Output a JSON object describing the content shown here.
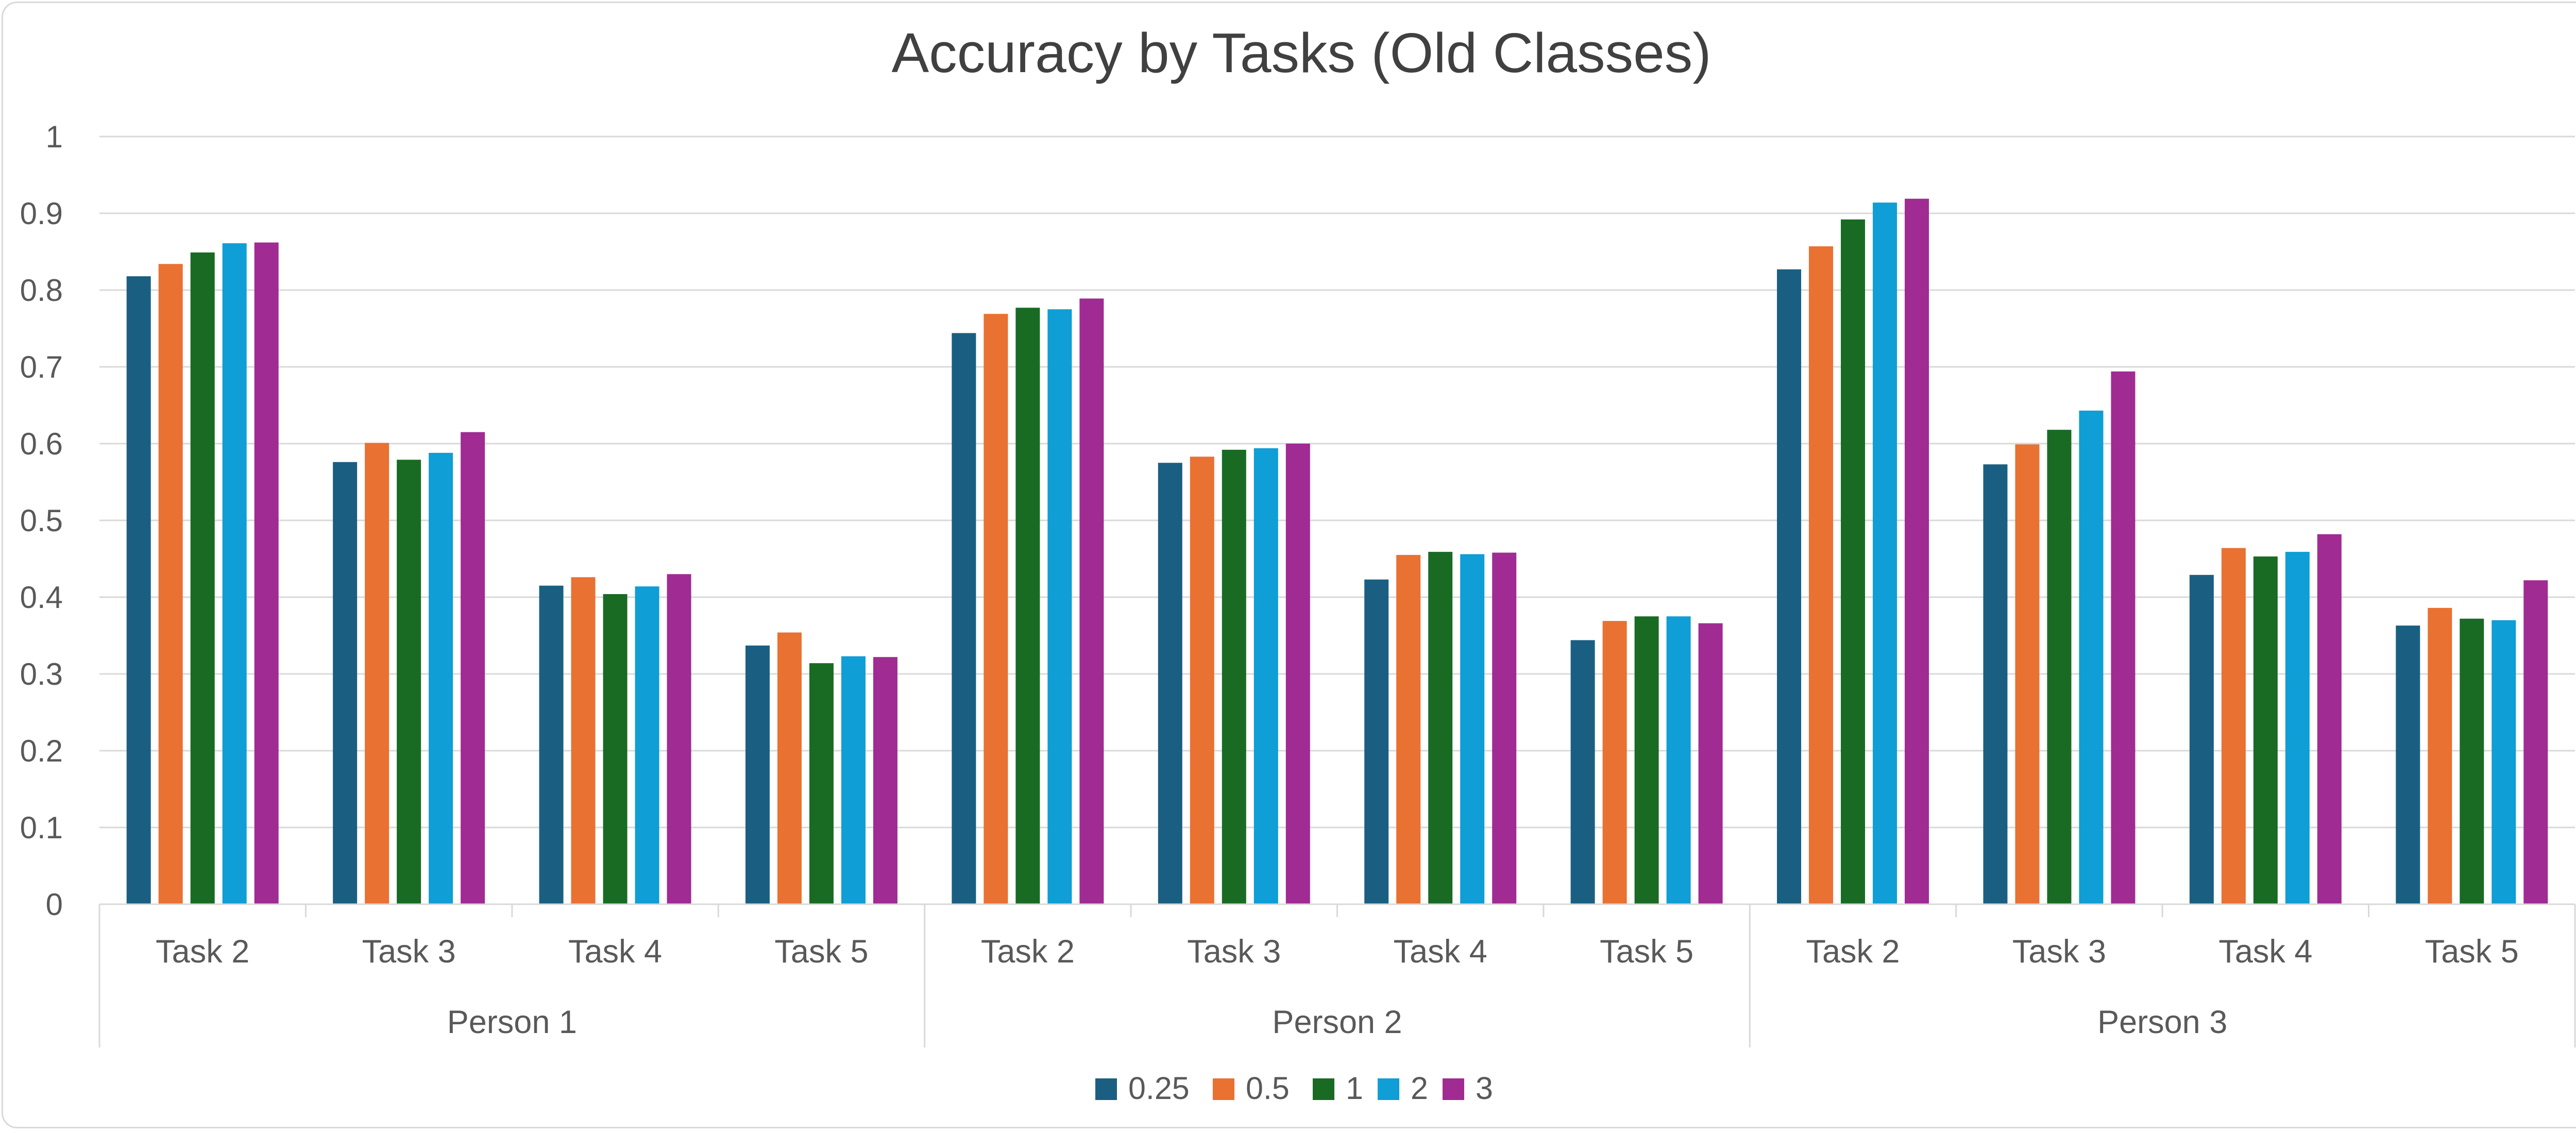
{
  "chart_data": {
    "type": "bar",
    "title": "Accuracy by Tasks (Old Classes)",
    "xlabel": "",
    "ylabel": "",
    "ylim": [
      0,
      1
    ],
    "yticks": [
      "0",
      "0.1",
      "0.2",
      "0.3",
      "0.4",
      "0.5",
      "0.6",
      "0.7",
      "0.8",
      "0.9",
      "1"
    ],
    "groups": [
      "Person 1",
      "Person 2",
      "Person 3"
    ],
    "categories": [
      "Task 2",
      "Task 3",
      "Task 4",
      "Task 5",
      "Task 2",
      "Task 3",
      "Task 4",
      "Task 5",
      "Task 2",
      "Task 3",
      "Task 4",
      "Task 5"
    ],
    "grid": true,
    "legend_position": "bottom",
    "series": [
      {
        "name": "0.25",
        "color": "#1a5f82",
        "values": [
          0.818,
          0.576,
          0.415,
          0.337,
          0.744,
          0.575,
          0.423,
          0.344,
          0.827,
          0.573,
          0.429,
          0.363
        ]
      },
      {
        "name": "0.5",
        "color": "#e97132",
        "values": [
          0.834,
          0.601,
          0.426,
          0.354,
          0.769,
          0.583,
          0.455,
          0.369,
          0.857,
          0.599,
          0.464,
          0.386
        ]
      },
      {
        "name": "1",
        "color": "#196b24",
        "values": [
          0.849,
          0.579,
          0.404,
          0.314,
          0.777,
          0.592,
          0.459,
          0.375,
          0.892,
          0.618,
          0.453,
          0.372
        ]
      },
      {
        "name": "2",
        "color": "#0f9ed5",
        "values": [
          0.861,
          0.588,
          0.414,
          0.323,
          0.775,
          0.594,
          0.456,
          0.375,
          0.914,
          0.643,
          0.459,
          0.37
        ]
      },
      {
        "name": "3",
        "color": "#a02b93",
        "values": [
          0.862,
          0.615,
          0.43,
          0.322,
          0.789,
          0.6,
          0.458,
          0.366,
          0.919,
          0.694,
          0.482,
          0.422
        ]
      }
    ]
  }
}
